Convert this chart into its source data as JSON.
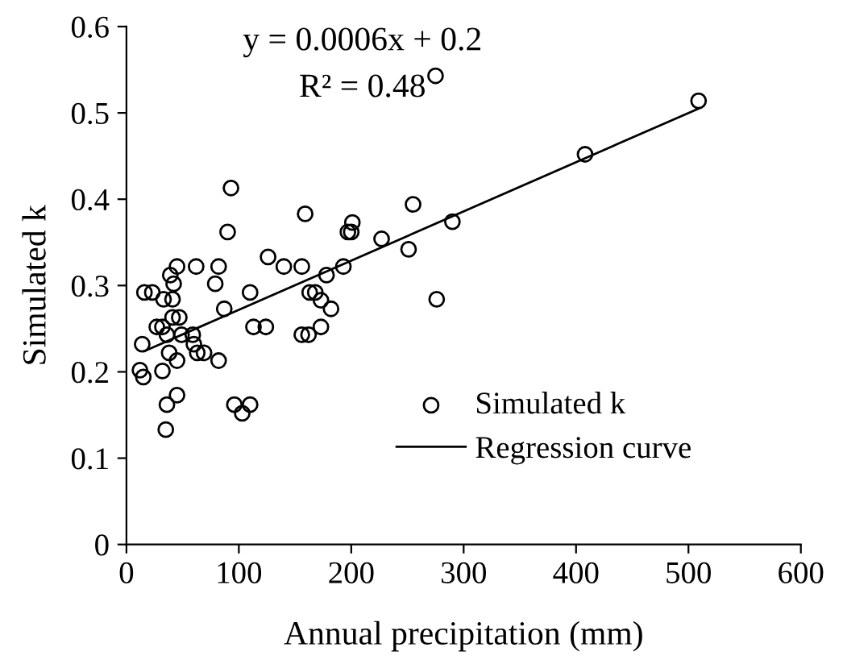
{
  "chart_data": {
    "type": "scatter",
    "xlabel": "Annual precipitation (mm)",
    "ylabel": "Simulated k",
    "annotations": [
      "y = 0.0006x + 0.2",
      "R² = 0.48"
    ],
    "xlim": [
      0,
      600
    ],
    "xticks": [
      0,
      100,
      200,
      300,
      400,
      500,
      600
    ],
    "ylim": [
      0,
      0.6
    ],
    "yticks": [
      0,
      0.1,
      0.2,
      0.3,
      0.4,
      0.5,
      0.6
    ],
    "grid": false,
    "legend": "bottom right",
    "series": [
      {
        "name": "Simulated k",
        "marker": "circle",
        "color": "#000000",
        "x": [
          16,
          23,
          14,
          12,
          15,
          27,
          32,
          33,
          32,
          36,
          35,
          36,
          38,
          39,
          41,
          42,
          45,
          41,
          47,
          45,
          45,
          49,
          59,
          60,
          63,
          69,
          62,
          79,
          82,
          82,
          87,
          90,
          93,
          96,
          103,
          110,
          110,
          113,
          124,
          126,
          140,
          156,
          156,
          162,
          159,
          163,
          168,
          173,
          173,
          178,
          182,
          193,
          197,
          201,
          200,
          227,
          251,
          255,
          275,
          276,
          290,
          408,
          509
        ],
        "values": [
          0.292,
          0.292,
          0.232,
          0.202,
          0.194,
          0.252,
          0.252,
          0.284,
          0.201,
          0.162,
          0.133,
          0.243,
          0.222,
          0.312,
          0.284,
          0.302,
          0.322,
          0.263,
          0.263,
          0.213,
          0.173,
          0.243,
          0.243,
          0.232,
          0.222,
          0.222,
          0.322,
          0.302,
          0.322,
          0.213,
          0.273,
          0.362,
          0.413,
          0.162,
          0.152,
          0.162,
          0.292,
          0.252,
          0.252,
          0.333,
          0.322,
          0.322,
          0.243,
          0.243,
          0.383,
          0.292,
          0.292,
          0.283,
          0.252,
          0.312,
          0.273,
          0.322,
          0.362,
          0.373,
          0.362,
          0.354,
          0.342,
          0.394,
          0.543,
          0.284,
          0.374,
          0.452,
          0.514
        ]
      },
      {
        "name": "Regression curve",
        "type": "line",
        "marker": "none",
        "line_style": "solid",
        "color": "#000000",
        "x": [
          16,
          509
        ],
        "values": [
          0.224,
          0.505
        ]
      }
    ]
  }
}
